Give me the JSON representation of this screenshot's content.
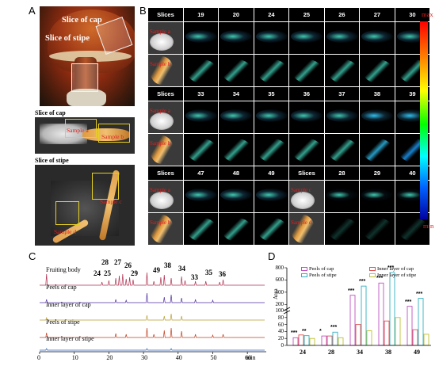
{
  "panel_letters": {
    "a": "A",
    "b": "B",
    "c": "C",
    "d": "D"
  },
  "panel_a": {
    "photo_labels": {
      "cap": "Slice of cap",
      "stipe": "Slice of stipe"
    },
    "cap_slice_title": "Slice of cap",
    "stipe_slice_title": "Slice of stipe",
    "sample_a": "Sample a",
    "sample_b": "Sample b",
    "sample_c": "Sample c",
    "sample_d": "Sample d"
  },
  "panel_b": {
    "slices_label": "Slices",
    "groups": [
      {
        "headers": [
          "19",
          "20",
          "24",
          "25",
          "26",
          "27",
          "30"
        ],
        "samples": [
          "Sample a",
          "Sample b"
        ]
      },
      {
        "headers": [
          "33",
          "34",
          "35",
          "36",
          "37",
          "38",
          "39"
        ],
        "samples": [
          "Sample a",
          "Sample b"
        ]
      },
      {
        "headers": [
          "47",
          "48",
          "49",
          "Slices",
          "28",
          "29",
          "40"
        ],
        "samples": [
          "Sample a",
          "Sample b",
          "Sample c",
          "Sample d"
        ]
      }
    ],
    "colorbar": {
      "max": "max",
      "min": "min",
      "colors": [
        "#ff0000",
        "#ff8000",
        "#ffff00",
        "#00ff00",
        "#00ffff",
        "#0060ff",
        "#0000a0"
      ]
    }
  },
  "panel_c": {
    "traces": [
      {
        "name": "Fruiting body",
        "color": "#b03050"
      },
      {
        "name": "Peels of cap",
        "color": "#5030a0"
      },
      {
        "name": "Inner layer of cap",
        "color": "#b8a030"
      },
      {
        "name": "Peels of stipe",
        "color": "#c04020"
      },
      {
        "name": "Inner layer of stipe",
        "color": "#3060b0"
      }
    ],
    "peak_labels": [
      "28",
      "27",
      "26",
      "25",
      "24",
      "29",
      "49",
      "38",
      "34",
      "33",
      "35",
      "36"
    ],
    "x_ticks": [
      "0",
      "10",
      "20",
      "30",
      "40",
      "50",
      "60"
    ],
    "x_unit": "min"
  },
  "panel_d": {
    "legend": [
      {
        "name": "Peels of cap",
        "color": "#c050c0"
      },
      {
        "name": "Inner layer of cap",
        "color": "#e05050"
      },
      {
        "name": "Peels of stipe",
        "color": "#30b0c0"
      },
      {
        "name": "Inner layer of stipe",
        "color": "#c0c030"
      }
    ],
    "y_label": "Area",
    "y_ticks": [
      "0",
      "20",
      "40",
      "60",
      "80",
      "100",
      "200",
      "400",
      "600",
      "800"
    ],
    "categories": [
      "24",
      "28",
      "34",
      "38",
      "49"
    ],
    "significance": [
      [
        "***",
        "**",
        "",
        ""
      ],
      [
        "*",
        "***",
        "",
        ""
      ],
      [
        "***",
        "***",
        "",
        ""
      ],
      [
        "***",
        "***",
        "",
        ""
      ],
      [
        "***",
        "***",
        "",
        ""
      ]
    ]
  },
  "chart_data": {
    "type": "bar",
    "categories": [
      "24",
      "28",
      "34",
      "38",
      "49"
    ],
    "ylabel": "Area",
    "series": [
      {
        "name": "Peels of cap",
        "values": [
          22,
          27,
          350,
          550,
          170
        ]
      },
      {
        "name": "Inner layer of cap",
        "values": [
          30,
          27,
          60,
          70,
          45
        ]
      },
      {
        "name": "Peels of stipe",
        "values": [
          28,
          38,
          500,
          720,
          300
        ]
      },
      {
        "name": "Inner layer of stipe",
        "values": [
          20,
          22,
          42,
          80,
          32
        ]
      }
    ]
  }
}
